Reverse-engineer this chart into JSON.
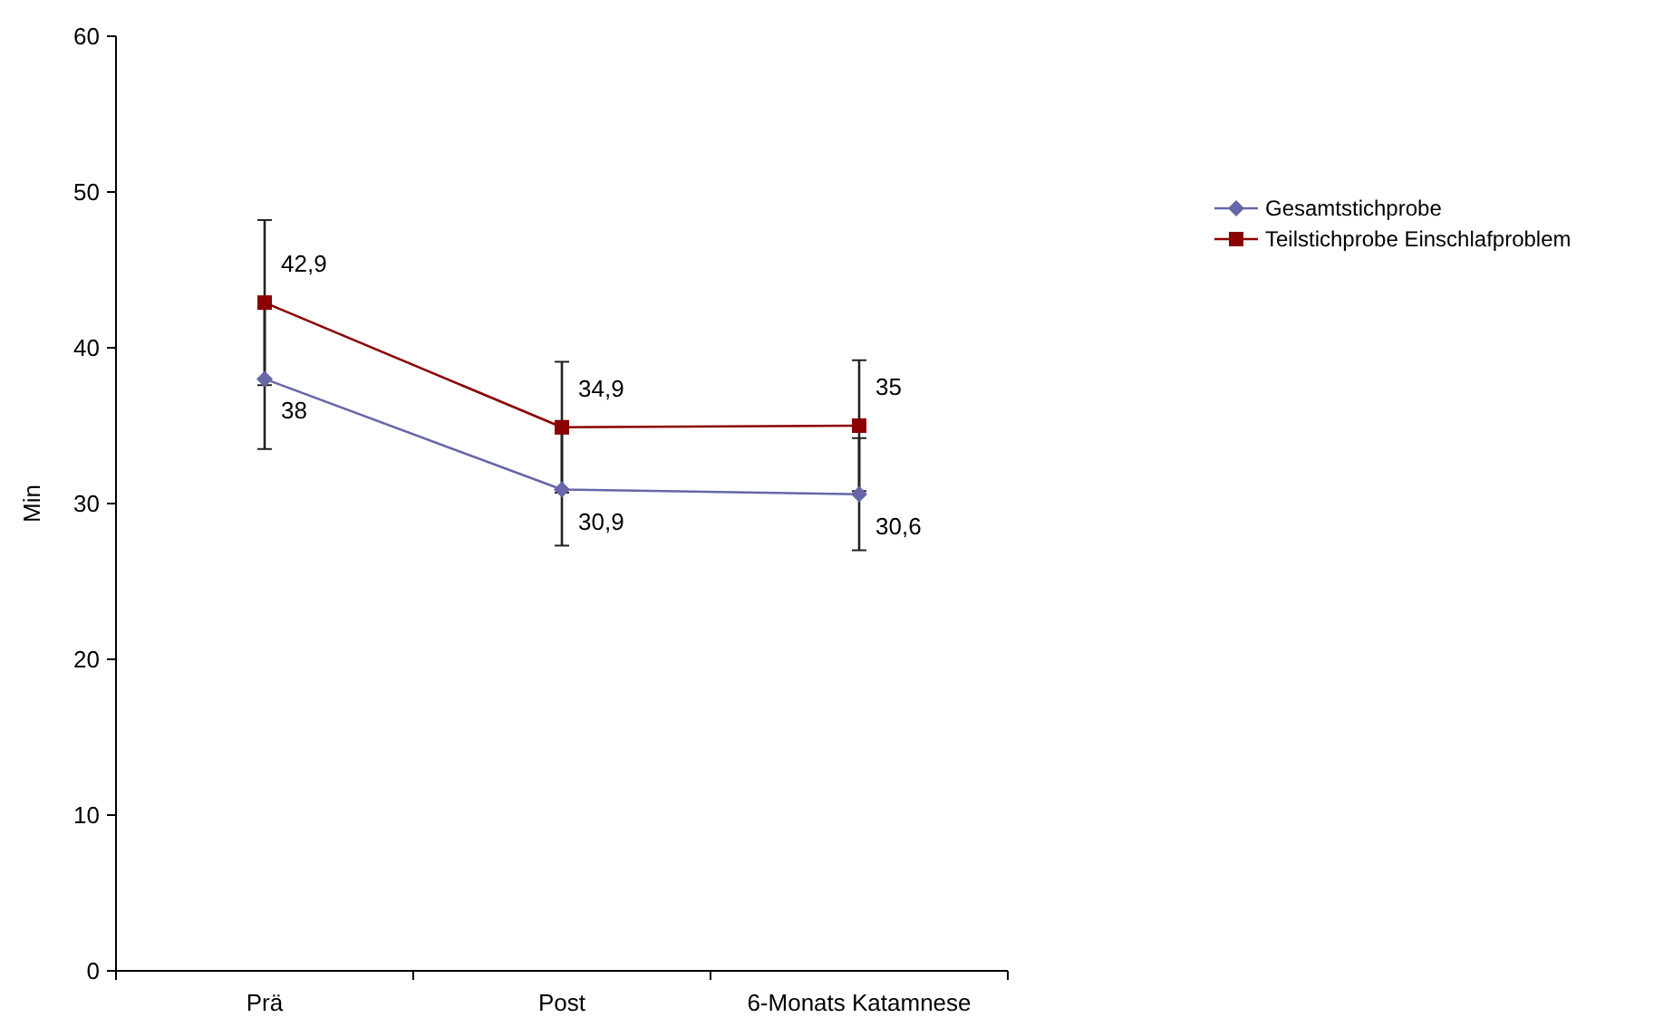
{
  "chart_data": {
    "type": "line",
    "ylabel": "Min",
    "categories": [
      "Prä",
      "Post",
      "6-Monats Katamnese"
    ],
    "series": [
      {
        "name": "Gesamtstichprobe",
        "color": "#6666a8",
        "values": [
          38,
          30.9,
          30.6
        ],
        "value_labels": [
          "38",
          "30,9",
          "30,6"
        ],
        "errors": [
          4.5,
          3.6,
          3.6
        ],
        "marker": "diamond"
      },
      {
        "name": "Teilstichprobe Einschlafproblem",
        "color": "#8b0000",
        "values": [
          42.9,
          34.9,
          35
        ],
        "value_labels": [
          "42,9",
          "34,9",
          "35"
        ],
        "errors": [
          5.3,
          4.2,
          4.2
        ],
        "marker": "square"
      }
    ],
    "ylim": [
      0,
      60
    ],
    "yticks": [
      0,
      10,
      20,
      30,
      40,
      50,
      60
    ],
    "grid": false,
    "legend": "right"
  }
}
